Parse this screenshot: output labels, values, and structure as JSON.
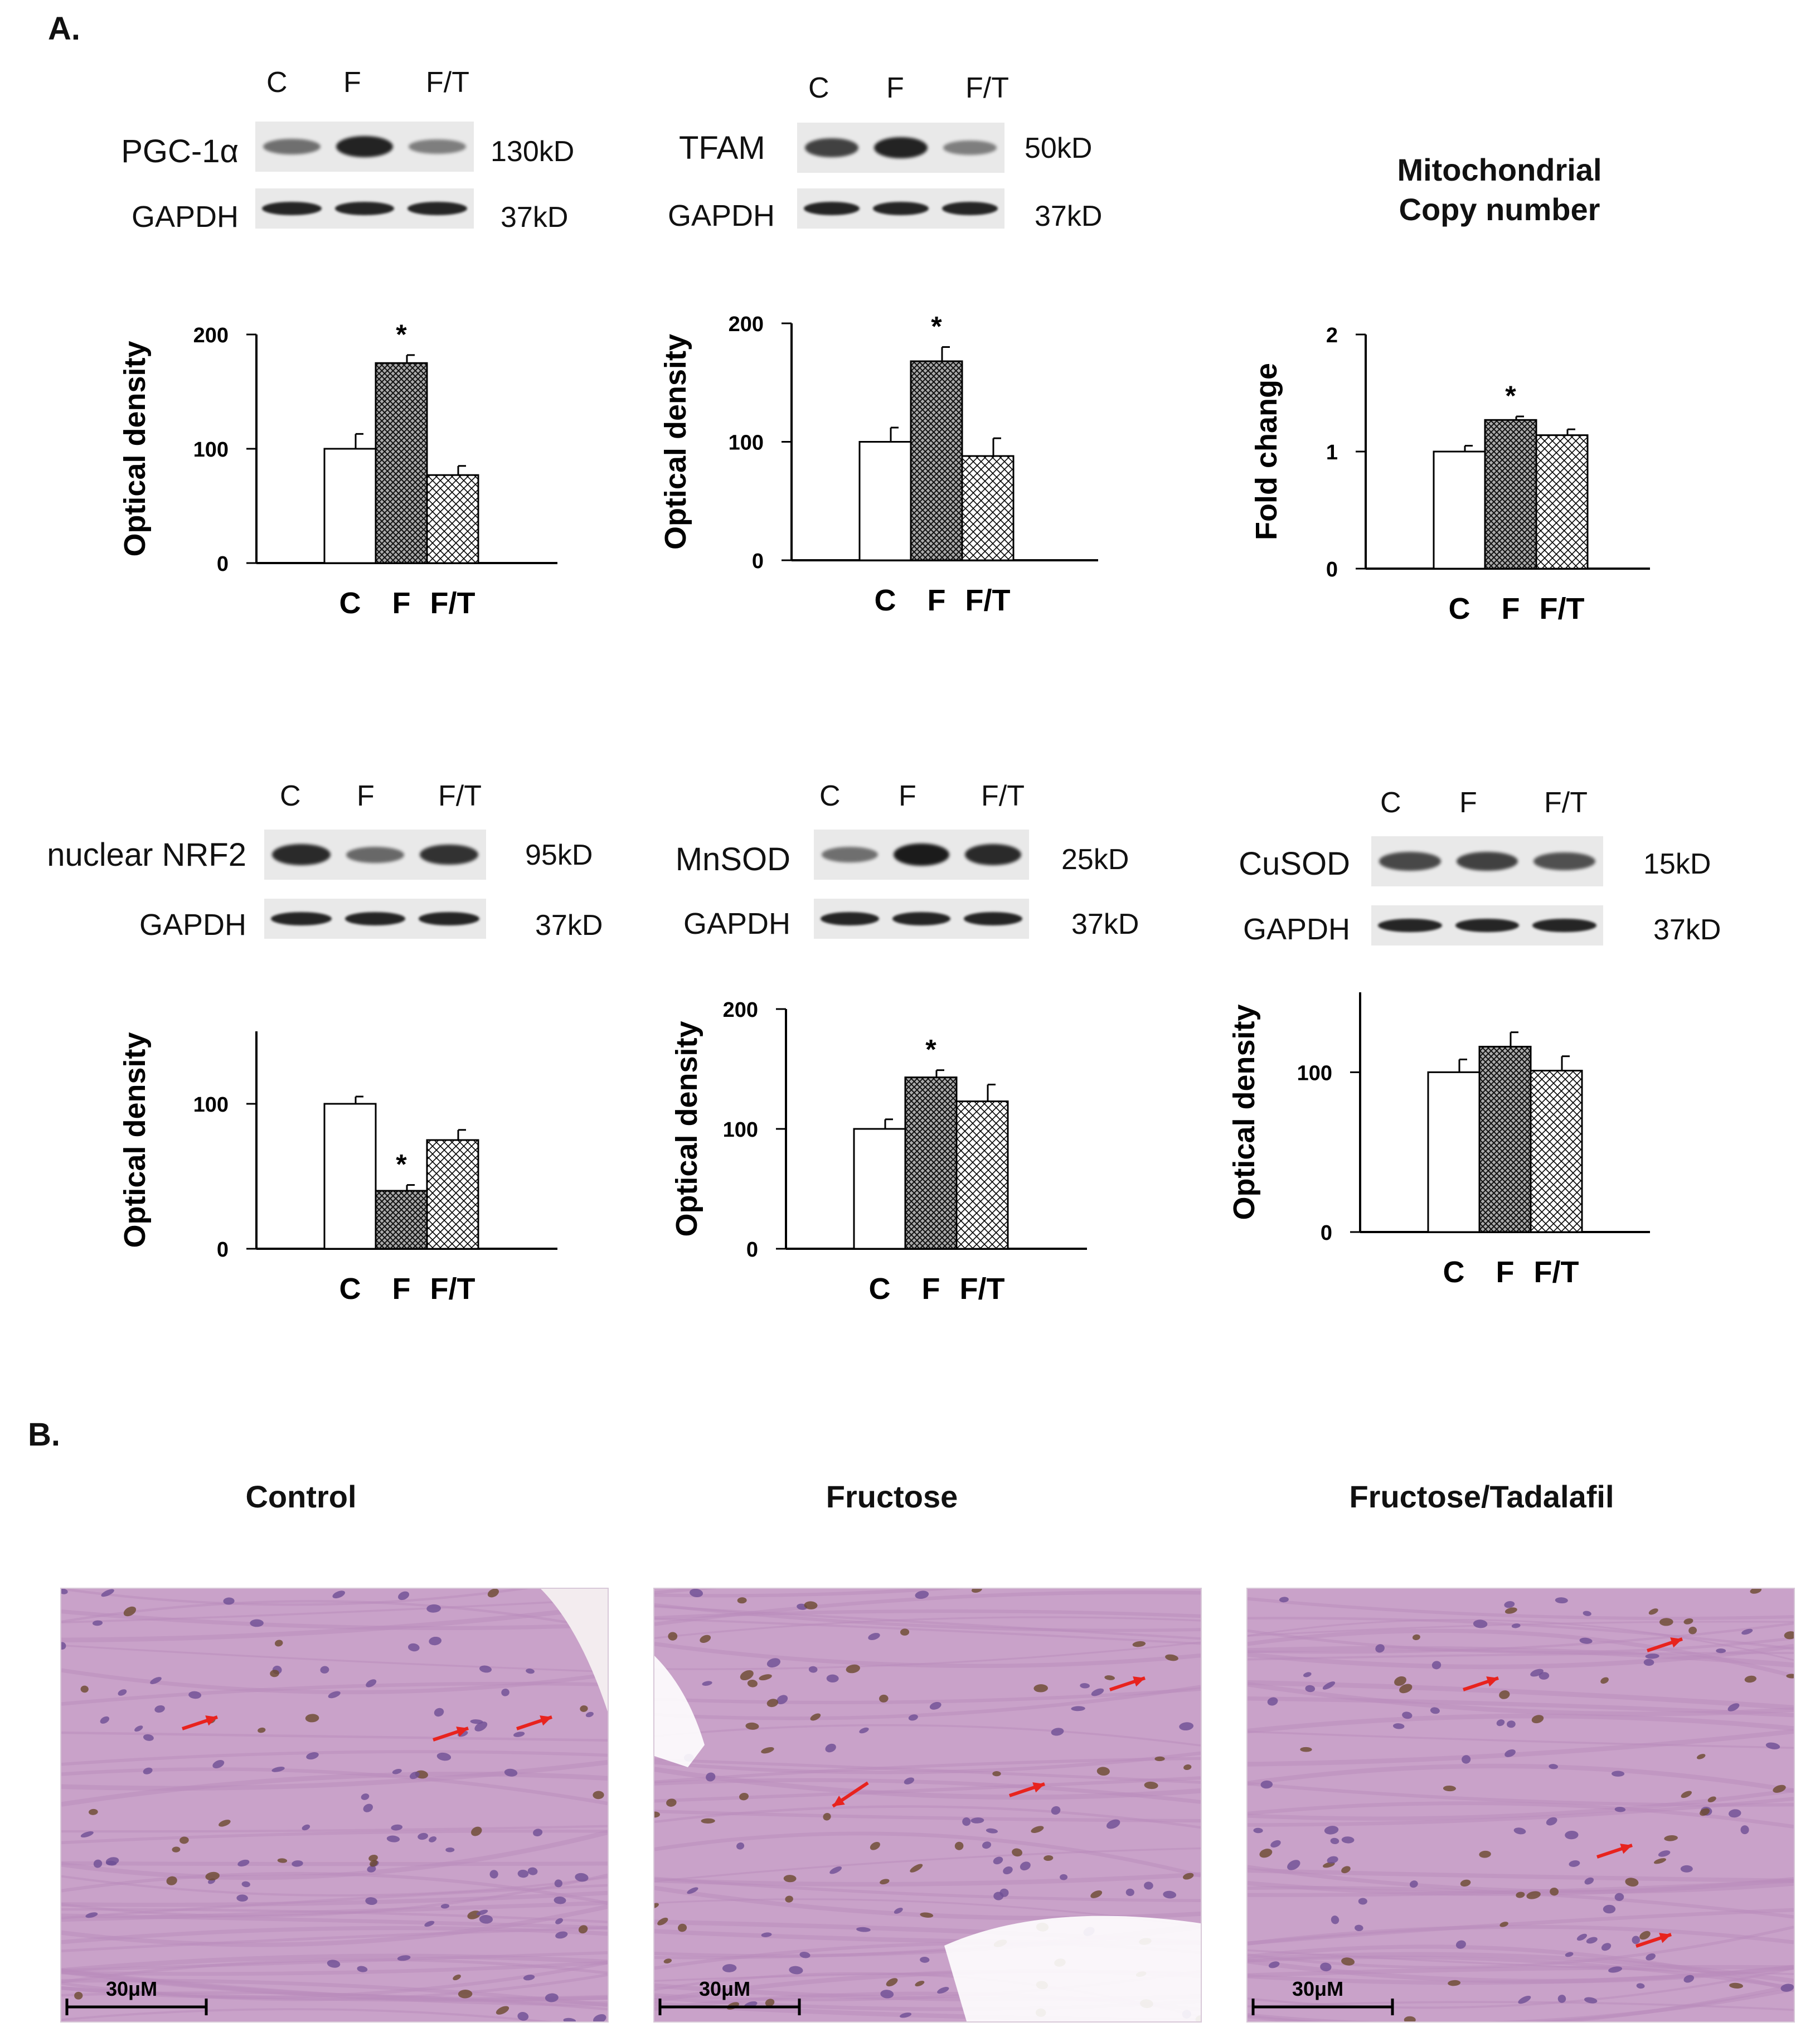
{
  "panel_a_label": "A.",
  "panel_b_label": "B.",
  "lanes": [
    "C",
    "F",
    "F/T"
  ],
  "blots": [
    {
      "protein": "PGC-1α",
      "protein_kd": "130kD",
      "loading": "GAPDH",
      "loading_kd": "37kD",
      "intensity": [
        0.45,
        0.95,
        0.35
      ]
    },
    {
      "protein": "TFAM",
      "protein_kd": "50kD",
      "loading": "GAPDH",
      "loading_kd": "37kD",
      "intensity": [
        0.75,
        0.95,
        0.35
      ]
    },
    {
      "protein": "nuclear NRF2",
      "protein_kd": "95kD",
      "loading": "GAPDH",
      "loading_kd": "37kD",
      "intensity": [
        0.9,
        0.5,
        0.85
      ]
    },
    {
      "protein": "MnSOD",
      "protein_kd": "25kD",
      "loading": "GAPDH",
      "loading_kd": "37kD",
      "intensity": [
        0.45,
        1.0,
        0.9
      ]
    },
    {
      "protein": "CuSOD",
      "protein_kd": "15kD",
      "loading": "GAPDH",
      "loading_kd": "37kD",
      "intensity": [
        0.7,
        0.75,
        0.65
      ]
    }
  ],
  "mito_title_line1": "Mitochondrial",
  "mito_title_line2": "Copy number",
  "sig_mark": "*",
  "chart_data": [
    {
      "type": "bar",
      "categories": [
        "C",
        "F",
        "F/T"
      ],
      "values": [
        100,
        175,
        77
      ],
      "errors": [
        13,
        7,
        8
      ],
      "ylabel": "Optical density",
      "ylim": [
        0,
        200
      ],
      "yticks": [
        "0",
        "100",
        "200"
      ],
      "sig_index": 1
    },
    {
      "type": "bar",
      "categories": [
        "C",
        "F",
        "F/T"
      ],
      "values": [
        100,
        168,
        88
      ],
      "errors": [
        12,
        12,
        15
      ],
      "ylabel": "Optical density",
      "ylim": [
        0,
        200
      ],
      "yticks": [
        "0",
        "100",
        "200"
      ],
      "sig_index": 1
    },
    {
      "type": "bar",
      "categories": [
        "C",
        "F",
        "F/T"
      ],
      "values": [
        1.0,
        1.27,
        1.14
      ],
      "errors": [
        0.05,
        0.03,
        0.05
      ],
      "ylabel": "Fold change",
      "ylim": [
        0,
        2
      ],
      "yticks": [
        "0",
        "1",
        "2"
      ],
      "sig_index": 1
    },
    {
      "type": "bar",
      "categories": [
        "C",
        "F",
        "F/T"
      ],
      "values": [
        100,
        40,
        75
      ],
      "errors": [
        5,
        4,
        7
      ],
      "ylabel": "Optical density",
      "ylim": [
        0,
        150
      ],
      "yticks": [
        "0",
        "100"
      ],
      "sig_index": 1
    },
    {
      "type": "bar",
      "categories": [
        "C",
        "F",
        "F/T"
      ],
      "values": [
        100,
        143,
        123
      ],
      "errors": [
        8,
        6,
        14
      ],
      "ylabel": "Optical density",
      "ylim": [
        0,
        200
      ],
      "yticks": [
        "0",
        "100",
        "200"
      ],
      "sig_index": 1
    },
    {
      "type": "bar",
      "categories": [
        "C",
        "F",
        "F/T"
      ],
      "values": [
        100,
        116,
        101
      ],
      "errors": [
        8,
        9,
        9
      ],
      "ylabel": "Optical density",
      "ylim": [
        0,
        150
      ],
      "yticks": [
        "0",
        "100"
      ],
      "sig_index": null
    }
  ],
  "micrographs": [
    {
      "title": "Control",
      "scale": "30μM"
    },
    {
      "title": "Fructose",
      "scale": "30μM"
    },
    {
      "title": "Fructose/Tadalafil",
      "scale": "30μM"
    }
  ],
  "colors": {
    "bar_outline": "#000000",
    "arrow": "#e8231e",
    "tissue": "#c9a2c9",
    "nucleus": "#6b4a2e"
  }
}
